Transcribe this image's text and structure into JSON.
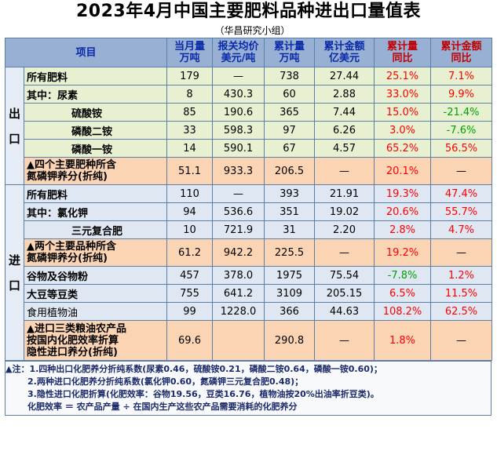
{
  "title": "2023年4月中国主要肥料品种进出口量值表",
  "subtitle": "（华昌研究小组）",
  "headers": {
    "item": "项目",
    "monthly_qty": [
      "当月量",
      "万吨"
    ],
    "price": [
      "报关均价",
      "美元/吨"
    ],
    "cum_qty": [
      "累计量",
      "万吨"
    ],
    "cum_amount": [
      "累计金额",
      "亿美元"
    ],
    "qty_yoy": [
      "累计量",
      "同比"
    ],
    "amount_yoy": [
      "累计金额",
      "同比"
    ]
  },
  "export_label": [
    "出",
    "口"
  ],
  "import_label": [
    "进",
    "口"
  ],
  "export_rows": [
    {
      "name": "所有肥料",
      "monthly": "179",
      "price": "—",
      "cum": "738",
      "amount": "27.44",
      "qty_yoy": "25.1%",
      "amt_yoy": "7.1%"
    },
    {
      "name": "其中：尿素",
      "monthly": "8",
      "price": "430.3",
      "cum": "60",
      "amount": "2.88",
      "qty_yoy": "33.0%",
      "amt_yoy": "9.9%"
    },
    {
      "name": "硫酸铵",
      "monthly": "85",
      "price": "190.6",
      "cum": "365",
      "amount": "7.44",
      "qty_yoy": "15.0%",
      "amt_yoy": "-21.4%"
    },
    {
      "name": "磷酸二铵",
      "monthly": "33",
      "price": "598.3",
      "cum": "97",
      "amount": "6.26",
      "qty_yoy": "3.0%",
      "amt_yoy": "-7.6%"
    },
    {
      "name": "磷酸一铵",
      "monthly": "14",
      "price": "590.1",
      "cum": "67",
      "amount": "4.57",
      "qty_yoy": "65.2%",
      "amt_yoy": "56.5%"
    },
    {
      "name": [
        "▲四个主要肥种所含",
        "氮磷钾养分(折纯)"
      ],
      "monthly": "51.1",
      "price": "933.3",
      "cum": "206.5",
      "amount": "—",
      "qty_yoy": "20.1%",
      "amt_yoy": "—"
    }
  ],
  "import_rows": [
    {
      "name": "所有肥料",
      "monthly": "110",
      "price": "—",
      "cum": "393",
      "amount": "21.91",
      "qty_yoy": "19.3%",
      "amt_yoy": "47.4%"
    },
    {
      "name": "其中：氯化钾",
      "monthly": "94",
      "price": "536.6",
      "cum": "351",
      "amount": "19.02",
      "qty_yoy": "20.6%",
      "amt_yoy": "55.7%"
    },
    {
      "name": "三元复合肥",
      "monthly": "10",
      "price": "721.9",
      "cum": "31",
      "amount": "2.20",
      "qty_yoy": "2.8%",
      "amt_yoy": "4.7%"
    },
    {
      "name": [
        "▲两个主要品种所含",
        "氮磷钾养分(折纯)"
      ],
      "monthly": "61.2",
      "price": "942.2",
      "cum": "225.5",
      "amount": "—",
      "qty_yoy": "19.2%",
      "amt_yoy": "—"
    },
    {
      "name": "谷物及谷物粉",
      "monthly": "457",
      "price": "378.0",
      "cum": "1975",
      "amount": "75.54",
      "qty_yoy": "-7.8%",
      "amt_yoy": "1.2%"
    },
    {
      "name": "大豆等豆类",
      "monthly": "755",
      "price": "641.2",
      "cum": "3109",
      "amount": "205.15",
      "qty_yoy": "6.5%",
      "amt_yoy": "11.5%"
    },
    {
      "name": "食用植物油",
      "monthly": "99",
      "price": "1228.0",
      "cum": "366",
      "amount": "44.63",
      "qty_yoy": "108.2%",
      "amt_yoy": "62.5%"
    },
    {
      "name": [
        "▲进口三类粮油农产品",
        "按国内化肥效率折算",
        "隐性进口养分(折纯)"
      ],
      "monthly": "69.6",
      "price": "",
      "cum": "290.8",
      "amount": "—",
      "qty_yoy": "1.8%",
      "amt_yoy": "—"
    }
  ],
  "notes": [
    "▲注：1.四种出口化肥养分折纯系数(尿素0.46，硫酸铵0.21，磷酸二铵0.64，磷酸一铵0.60)；",
    "2.两种进口化肥养分折纯系数(氯化钾0.60，氮磷钾三元复合肥0.48)；",
    "3.隐性进口化肥折算(化肥效率：谷物19.56，豆类16.76，植物油按20%出油率折豆类)。",
    "化肥效率 ＝ 农产品产量 ÷ 在国内生产这些农产品需要消耗的化肥养分"
  ],
  "colors": {
    "header_bg": "#99b0d5",
    "row_green": "#e7f1d2",
    "row_orange": "#fbd4b4",
    "row_blue": "#dfe7f3",
    "positive": "#ff0000",
    "negative": "#00a000"
  }
}
